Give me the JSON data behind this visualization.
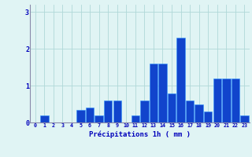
{
  "hours": [
    0,
    1,
    2,
    3,
    4,
    5,
    6,
    7,
    8,
    9,
    10,
    11,
    12,
    13,
    14,
    15,
    16,
    17,
    18,
    19,
    20,
    21,
    22,
    23
  ],
  "values": [
    0.0,
    0.2,
    0.0,
    0.0,
    0.0,
    0.35,
    0.4,
    0.2,
    0.6,
    0.6,
    0.0,
    0.2,
    0.6,
    1.6,
    1.6,
    0.8,
    2.3,
    0.6,
    0.5,
    0.3,
    1.2,
    1.2,
    1.2,
    0.2
  ],
  "bar_color": "#1144cc",
  "bar_edge_color": "#3399ff",
  "background_color": "#e0f4f4",
  "grid_color": "#b0d8d8",
  "xlabel": "Précipitations 1h ( mm )",
  "xlabel_color": "#0000bb",
  "tick_color": "#0000bb",
  "axis_line_color": "#8888aa",
  "ylim": [
    0,
    3.2
  ],
  "yticks": [
    0,
    1,
    2,
    3
  ],
  "figsize": [
    3.2,
    2.0
  ],
  "dpi": 100
}
